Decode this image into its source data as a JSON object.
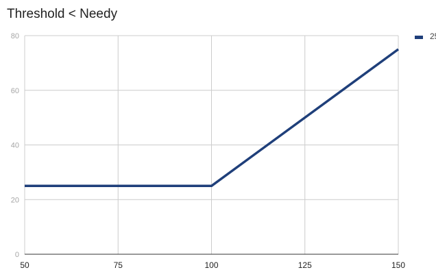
{
  "chart_data": {
    "type": "line",
    "title": "Threshold < Needy",
    "xlabel": "",
    "ylabel": "",
    "x": [
      50,
      75,
      100,
      125,
      150
    ],
    "xlim": [
      50,
      150
    ],
    "ylim": [
      0,
      80
    ],
    "x_ticks": [
      "50",
      "75",
      "100",
      "125",
      "150"
    ],
    "y_ticks": [
      "0",
      "20",
      "40",
      "60",
      "80"
    ],
    "grid": true,
    "legend_position": "right",
    "series": [
      {
        "name": "25",
        "color": "#1f3f7a",
        "points": [
          [
            50,
            25
          ],
          [
            100,
            25
          ],
          [
            150,
            75
          ]
        ]
      }
    ]
  }
}
